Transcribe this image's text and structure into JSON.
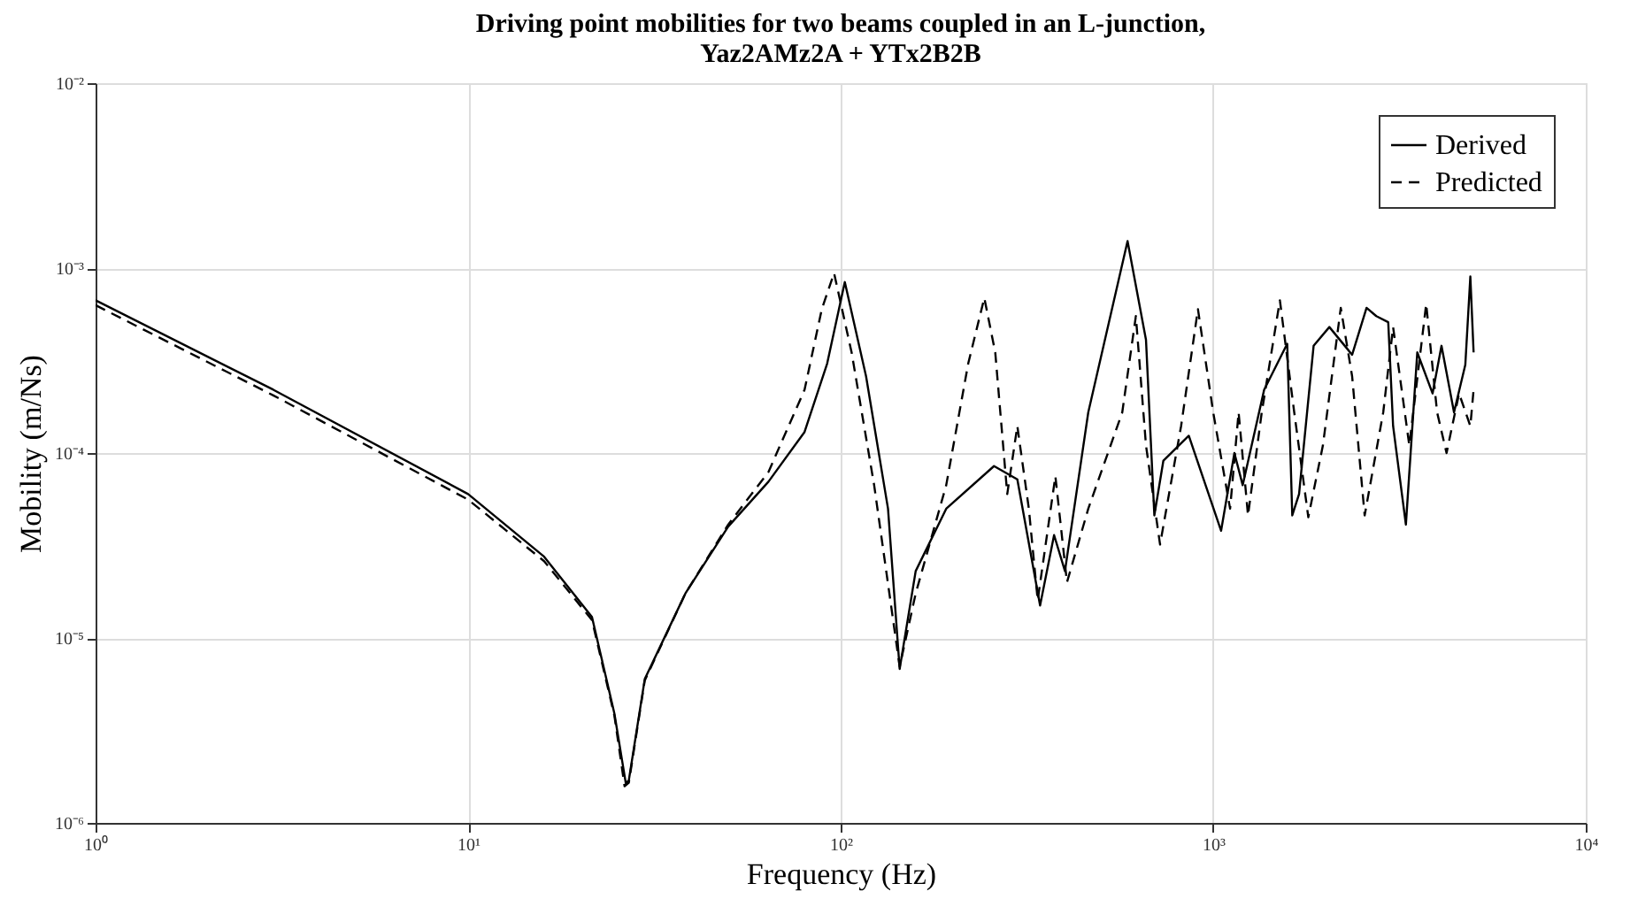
{
  "chart_data": {
    "type": "line",
    "title": "Driving point mobilities for two beams coupled in an L-junction,\nYaz2AMz2A + YTx2B2B",
    "xlabel": "Frequency (Hz)",
    "ylabel": "Mobility (m/Ns)",
    "log": "xy",
    "grid": true,
    "legend": "top right",
    "marker": "none",
    "xlim": [
      1,
      10000
    ],
    "ylim": [
      1e-06,
      0.01
    ],
    "xticks": [
      {
        "value": 1,
        "label": "10⁰"
      },
      {
        "value": 10,
        "label": "10¹"
      },
      {
        "value": 100,
        "label": "10²"
      },
      {
        "value": 1000,
        "label": "10³"
      },
      {
        "value": 10000,
        "label": "10⁴"
      }
    ],
    "yticks": [
      {
        "value": 1e-06,
        "label": "10⁻⁶"
      },
      {
        "value": 1e-05,
        "label": "10⁻⁵"
      },
      {
        "value": 0.0001,
        "label": "10⁻⁴"
      },
      {
        "value": 0.001,
        "label": "10⁻³"
      },
      {
        "value": 0.01,
        "label": "10⁻²"
      }
    ],
    "series": [
      {
        "name": "Derived",
        "color": "#000000",
        "line_style": "solid",
        "x": [
          1,
          3,
          10,
          16,
          21.5,
          24.7,
          26.5,
          27,
          29.8,
          38.3,
          49.9,
          64,
          80,
          92,
          102.6,
          117,
          134,
          144,
          159,
          192,
          258,
          298,
          343,
          374,
          400,
          462,
          589,
          660,
          695,
          735,
          860,
          1050,
          1140,
          1200,
          1370,
          1580,
          1630,
          1700,
          1860,
          2050,
          2360,
          2580,
          2740,
          2950,
          3040,
          3290,
          3530,
          3880,
          4100,
          4430,
          4750,
          4900,
          5000
        ],
        "values": [
          0.00067,
          0.00022,
          6e-05,
          2.75e-05,
          1.3e-05,
          3.9e-06,
          1.64e-06,
          1.7e-06,
          6e-06,
          1.74e-05,
          4e-05,
          7e-05,
          0.00013,
          0.000305,
          0.00084,
          0.00026,
          5e-05,
          6.8e-06,
          2.3e-05,
          5e-05,
          8.5e-05,
          7.2e-05,
          1.5e-05,
          3.6e-05,
          2.3e-05,
          0.000166,
          0.0014,
          0.00041,
          4.6e-05,
          9.1e-05,
          0.000124,
          3.8e-05,
          0.0001,
          6.7e-05,
          0.00022,
          0.00039,
          4.6e-05,
          6e-05,
          0.00038,
          0.00048,
          0.00034,
          0.00061,
          0.00055,
          0.00051,
          0.00014,
          4.1e-05,
          0.00035,
          0.00021,
          0.00038,
          0.000166,
          0.0003,
          0.0009,
          0.00035
        ]
      },
      {
        "name": "Predicted",
        "color": "#000000",
        "line_style": "dashed",
        "x": [
          1,
          3,
          10,
          16,
          21.5,
          24.7,
          26.3,
          27,
          29.8,
          38.3,
          49.9,
          64,
          80,
          89,
          96,
          107,
          123,
          144,
          159,
          192,
          220,
          243,
          260,
          280,
          298,
          320,
          338,
          377,
          405,
          462,
          570,
          620,
          660,
          720,
          820,
          910,
          1000,
          1110,
          1170,
          1240,
          1350,
          1510,
          1650,
          1800,
          1970,
          2200,
          2360,
          2550,
          2860,
          3040,
          3360,
          3730,
          3990,
          4230,
          4570,
          4900,
          5000
        ],
        "values": [
          0.00063,
          0.000205,
          5.6e-05,
          2.6e-05,
          1.25e-05,
          3.8e-06,
          1.58e-06,
          1.65e-06,
          5.9e-06,
          1.74e-05,
          4.1e-05,
          7.9e-05,
          0.00022,
          0.0006,
          0.00094,
          0.00035,
          6.7e-05,
          7e-06,
          1.74e-05,
          6.7e-05,
          0.000305,
          0.00069,
          0.00035,
          6e-05,
          0.00014,
          5e-05,
          1.6e-05,
          7.5e-05,
          2e-05,
          5e-05,
          0.000166,
          0.00055,
          0.00011,
          3.2e-05,
          0.00014,
          0.0006,
          0.000166,
          5e-05,
          0.000166,
          4.6e-05,
          0.000166,
          0.00067,
          0.000166,
          4.5e-05,
          0.00011,
          0.00061,
          0.00026,
          4.6e-05,
          0.000166,
          0.00048,
          0.00011,
          0.00064,
          0.000166,
          0.0001,
          0.00021,
          0.00014,
          0.00022
        ]
      }
    ]
  }
}
